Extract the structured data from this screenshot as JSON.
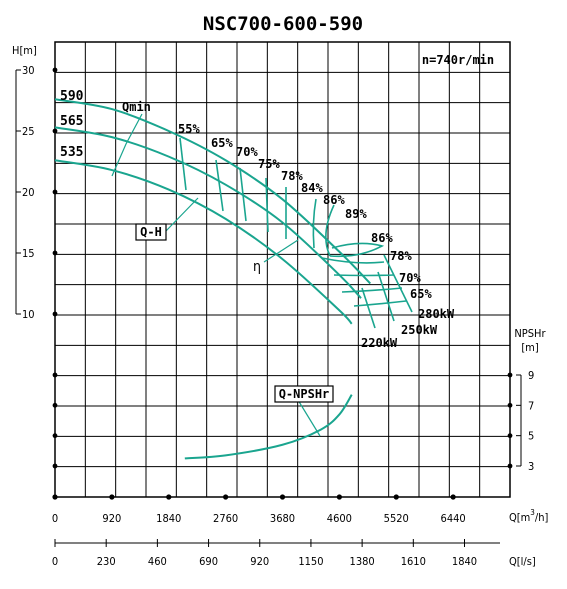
{
  "chart_data": {
    "type": "line",
    "title": "NSC700-600-590",
    "speed_label": "n=740r/min",
    "axes": {
      "head": {
        "label": "H[m]",
        "ticks": [
          "30",
          "25",
          "20",
          "15",
          "10"
        ]
      },
      "npsh": {
        "label": "NPSHr",
        "unit": "[m]",
        "ticks": [
          "9",
          "7",
          "5",
          "3"
        ]
      },
      "flow_m3h": {
        "label": "Q[m³/h]",
        "label_main": "Q[m",
        "label_sup": "3",
        "label_end": "/h]",
        "ticks": [
          "0",
          "920",
          "1840",
          "2760",
          "3680",
          "4600",
          "5520",
          "6440"
        ]
      },
      "flow_ls": {
        "label": "Q[l/s]",
        "ticks": [
          "0",
          "230",
          "460",
          "690",
          "920",
          "1150",
          "1380",
          "1610",
          "1840"
        ]
      }
    },
    "impeller_diameters": [
      "590",
      "565",
      "535"
    ],
    "efficiency_labels_upper": [
      "55%",
      "65%",
      "70%",
      "75%",
      "78%",
      "84%",
      "86%",
      "89%"
    ],
    "efficiency_labels_lower": [
      "86%",
      "78%",
      "70%",
      "65%"
    ],
    "power_labels": [
      "280kW",
      "250kW",
      "220kW"
    ],
    "curve_labels": {
      "qmin": "Qmin",
      "qh": "Q-H",
      "eta": "η",
      "qnpsh": "Q-NPSHr"
    },
    "series": [
      {
        "name": "590",
        "x": [
          0,
          920,
          1840,
          2760,
          3680,
          4600,
          5100
        ],
        "y": [
          27.6,
          26.8,
          25.0,
          22.6,
          19.4,
          15.1,
          12.5
        ]
      },
      {
        "name": "565",
        "x": [
          0,
          920,
          1840,
          2760,
          3680,
          4600,
          4950
        ],
        "y": [
          25.3,
          24.5,
          22.9,
          20.6,
          17.5,
          13.2,
          11.3
        ]
      },
      {
        "name": "535",
        "x": [
          0,
          920,
          1840,
          2760,
          3680,
          4600,
          4800
        ],
        "y": [
          22.6,
          21.8,
          20.2,
          17.8,
          14.5,
          10.3,
          9.2
        ]
      },
      {
        "name": "Q-NPSHr",
        "x": [
          2100,
          2760,
          3680,
          4300,
          4600,
          4800
        ],
        "y": [
          3.5,
          3.7,
          4.4,
          5.4,
          6.4,
          7.7
        ]
      }
    ],
    "grid": true,
    "legend": "none"
  }
}
